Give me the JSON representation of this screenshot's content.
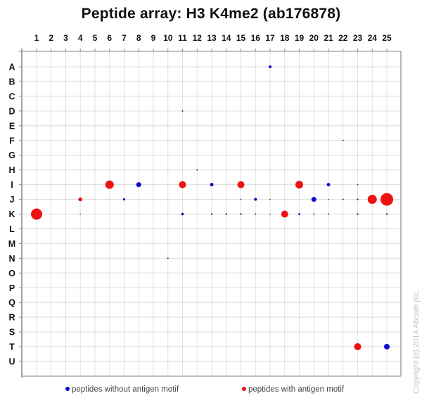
{
  "title": "Peptide array:  H3 K4me2 (ab176878)",
  "copyright": "Copyright (c) 2014 Abcam plc.",
  "legend": {
    "without": {
      "label": "peptides without antigen motif",
      "color": "#0a0ad0"
    },
    "with": {
      "label": "peptides with antigen motif",
      "color": "#ee1111"
    }
  },
  "colors": {
    "blue": "#0a0ad0",
    "red": "#ee1111",
    "dark": "#333344",
    "grid": "#e3e3e3",
    "axis": "#888888"
  },
  "chart_data": {
    "type": "scatter",
    "title": "Peptide array:  H3 K4me2 (ab176878)",
    "xlabel": "",
    "ylabel": "",
    "x_ticks": [
      "1",
      "2",
      "3",
      "4",
      "5",
      "6",
      "7",
      "8",
      "9",
      "10",
      "11",
      "12",
      "13",
      "14",
      "15",
      "16",
      "17",
      "18",
      "19",
      "20",
      "21",
      "22",
      "23",
      "24",
      "25"
    ],
    "y_ticks": [
      "A",
      "B",
      "C",
      "D",
      "E",
      "F",
      "G",
      "H",
      "I",
      "J",
      "K",
      "L",
      "M",
      "N",
      "O",
      "P",
      "Q",
      "R",
      "S",
      "T",
      "U"
    ],
    "grid": true,
    "legend_position": "bottom",
    "series": [
      {
        "name": "peptides without antigen motif",
        "color": "#0a0ad0",
        "points": [
          {
            "col": 17,
            "row": "A",
            "size": 2
          },
          {
            "col": 11,
            "row": "D",
            "size": 1
          },
          {
            "col": 22,
            "row": "F",
            "size": 1
          },
          {
            "col": 12,
            "row": "H",
            "size": 1
          },
          {
            "col": 8,
            "row": "I",
            "size": 3.5
          },
          {
            "col": 13,
            "row": "I",
            "size": 2.5
          },
          {
            "col": 21,
            "row": "I",
            "size": 2.5
          },
          {
            "col": 23,
            "row": "I",
            "size": 0.8
          },
          {
            "col": 7,
            "row": "J",
            "size": 1.6
          },
          {
            "col": 15,
            "row": "J",
            "size": 0.9
          },
          {
            "col": 16,
            "row": "J",
            "size": 2
          },
          {
            "col": 17,
            "row": "J",
            "size": 0.8
          },
          {
            "col": 20,
            "row": "J",
            "size": 3.5
          },
          {
            "col": 21,
            "row": "J",
            "size": 0.8
          },
          {
            "col": 22,
            "row": "J",
            "size": 1
          },
          {
            "col": 4,
            "row": "K",
            "size": 0.8
          },
          {
            "col": 11,
            "row": "K",
            "size": 1.8
          },
          {
            "col": 13,
            "row": "K",
            "size": 1.2
          },
          {
            "col": 14,
            "row": "K",
            "size": 1.2
          },
          {
            "col": 15,
            "row": "K",
            "size": 1.2
          },
          {
            "col": 16,
            "row": "K",
            "size": 1
          },
          {
            "col": 17,
            "row": "K",
            "size": 0.8
          },
          {
            "col": 19,
            "row": "K",
            "size": 1.4
          },
          {
            "col": 20,
            "row": "K",
            "size": 1
          },
          {
            "col": 21,
            "row": "K",
            "size": 1
          },
          {
            "col": 23,
            "row": "K",
            "size": 1.2
          },
          {
            "col": 25,
            "row": "K",
            "size": 1.2
          },
          {
            "col": 10,
            "row": "N",
            "size": 1
          },
          {
            "col": 25,
            "row": "T",
            "size": 4
          }
        ]
      },
      {
        "name": "peptides with antigen motif",
        "color": "#ee1111",
        "points": [
          {
            "col": 6,
            "row": "I",
            "size": 6
          },
          {
            "col": 11,
            "row": "I",
            "size": 5
          },
          {
            "col": 15,
            "row": "I",
            "size": 5
          },
          {
            "col": 19,
            "row": "I",
            "size": 5.5
          },
          {
            "col": 4,
            "row": "J",
            "size": 2.8
          },
          {
            "col": 23,
            "row": "J",
            "size": 1.2
          },
          {
            "col": 24,
            "row": "J",
            "size": 6.5
          },
          {
            "col": 25,
            "row": "J",
            "size": 9
          },
          {
            "col": 1,
            "row": "K",
            "size": 8
          },
          {
            "col": 18,
            "row": "K",
            "size": 5
          },
          {
            "col": 23,
            "row": "T",
            "size": 5
          }
        ]
      }
    ]
  }
}
